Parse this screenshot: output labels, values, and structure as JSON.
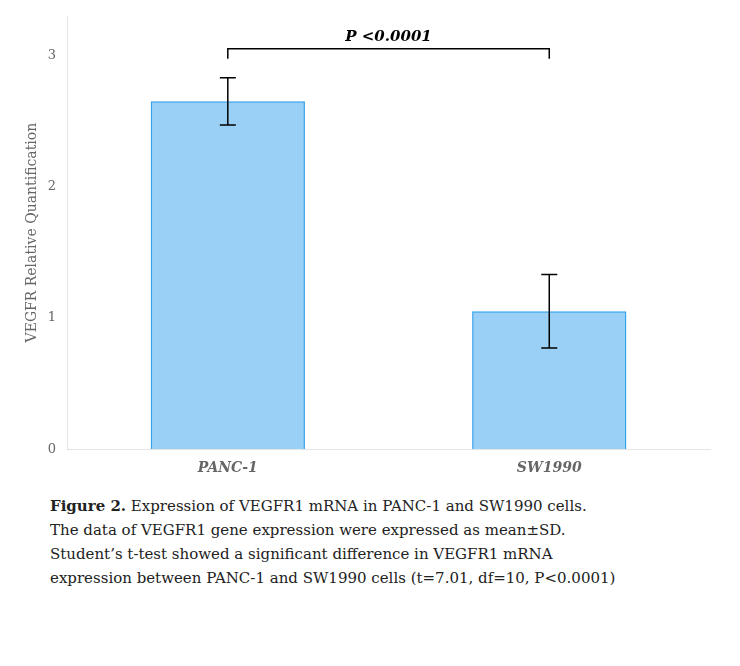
{
  "chart_data": {
    "type": "bar",
    "categories": [
      "PANC-1",
      "SW1990"
    ],
    "values": [
      2.65,
      1.05
    ],
    "errors": [
      0.18,
      0.28
    ],
    "ylabel": "VEGFR Relative Quantification",
    "ylim": [
      0,
      3.3
    ],
    "yticks": [
      0,
      1,
      2,
      3
    ],
    "grid": false,
    "annotations": [
      {
        "text": "P <0.0001",
        "from": "PANC-1",
        "to": "SW1990",
        "y": 3.05
      }
    ],
    "caption_title": "Figure 2.",
    "caption": [
      "Expression of VEGFR1 mRNA in PANC-1 and SW1990 cells.",
      "The data of VEGFR1 gene expression were expressed as mean±SD.",
      "Student’s t-test showed a significant difference in VEGFR1 mRNA",
      "expression between PANC-1 and SW1990 cells (t=7.01, df=10, P<0.0001)"
    ]
  }
}
